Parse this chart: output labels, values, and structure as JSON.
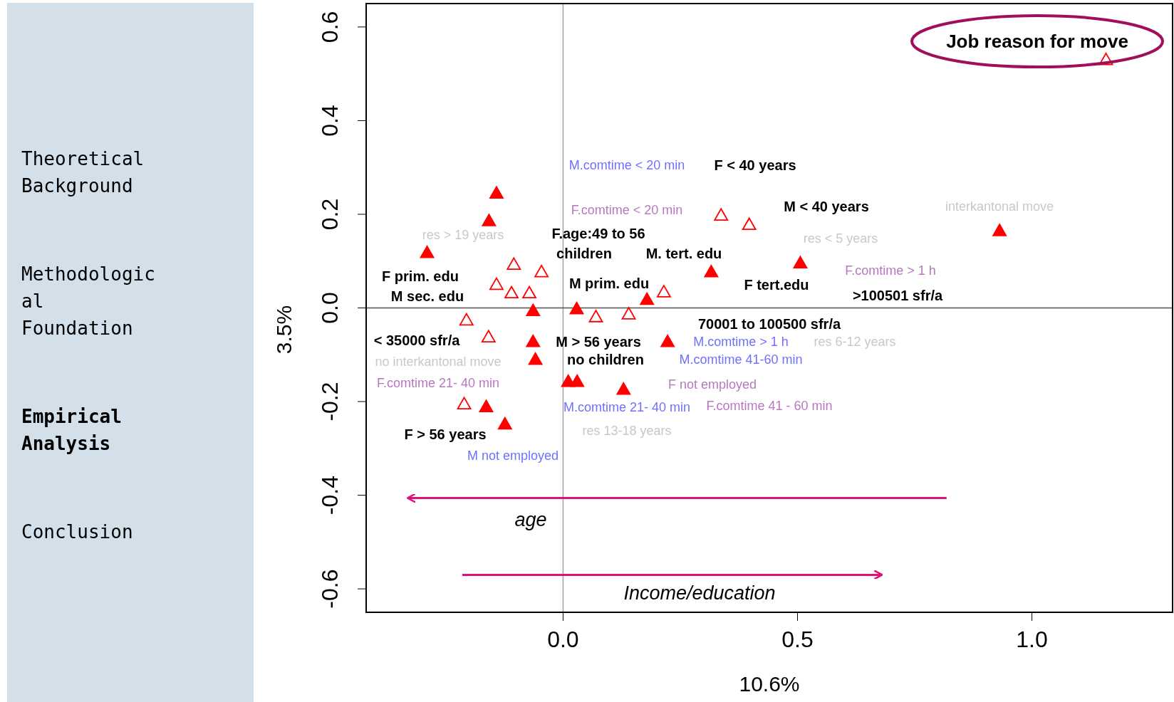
{
  "chart_data": [
    {
      "type": "scatter",
      "xlabel": "10.6%",
      "ylabel": "3.5%",
      "xlim": [
        -0.42,
        1.3
      ],
      "ylim": [
        -0.65,
        0.65
      ],
      "xticks": [
        {
          "value": 0,
          "label": "0.0"
        },
        0.5,
        {
          "value": 1,
          "label": "1.0"
        }
      ],
      "yticks": [
        -0.6,
        -0.4,
        -0.2,
        {
          "value": 0,
          "label": "0.0"
        },
        0.2,
        0.4,
        0.6
      ],
      "grid": false,
      "marker": "triangle",
      "ref_lines": [
        {
          "axis": "x",
          "value": 0,
          "color": "#a0a0a0"
        },
        {
          "axis": "y",
          "value": 0,
          "color": "#505050"
        }
      ],
      "series": [
        {
          "color": "#ff0000",
          "x": [
            -0.142,
            -0.158,
            -0.29,
            0.316,
            0.506,
            0.931,
            -0.064,
            0.029,
            -0.064,
            -0.059,
            0.011,
            0.03,
            0.129,
            0.223,
            -0.164,
            -0.124,
            0.179
          ],
          "values": [
            0.245,
            0.186,
            0.118,
            0.077,
            0.096,
            0.165,
            -0.006,
            -0.002,
            -0.072,
            -0.11,
            -0.157,
            -0.157,
            -0.174,
            -0.072,
            -0.211,
            -0.248,
            0.018
          ]
        },
        {
          "color": "#ff0000",
          "x": [
            0.337,
            0.397,
            1.158,
            -0.105,
            -0.046,
            -0.206,
            -0.159,
            0.07,
            -0.211,
            0.14,
            -0.142,
            -0.11,
            -0.072,
            0.215
          ],
          "values": [
            0.198,
            0.178,
            0.53,
            0.093,
            0.077,
            -0.026,
            -0.062,
            -0.019,
            -0.205,
            -0.013,
            0.05,
            0.032,
            0.032,
            0.034
          ]
        }
      ],
      "annotations": [
        "res > 19 years",
        "no interkantonal move",
        "interkantonal move",
        "res < 5 years",
        "res 6-12 years",
        "res 13-18 years",
        "M.comtime < 20 min",
        "M.comtime 41-60 min",
        "M.comtime > 1 h",
        "M.comtime 21- 40 min",
        "M not employed",
        "F.comtime < 20 min",
        "F.comtime > 1 h",
        "F.comtime 21- 40 min",
        "F not employed",
        "F.comtime 41 - 60 min",
        "F < 40 years",
        "M < 40 years",
        "F.age:49 to 56",
        "children",
        "M. tert. edu",
        "F prim. edu",
        "M prim. edu",
        "F tert.edu",
        "M sec. edu",
        ">100501 sfr/a",
        "< 35000 sfr/a",
        "no children",
        "70001 to 100500 sfr/a",
        "M > 56 years",
        "F > 56 years",
        "Job reason for move",
        "age",
        "Income/education"
      ]
    },
    {
      "type": "other",
      "annotations": [
        "Theoretical Background",
        "Methodological Foundation",
        "Empirical Analysis",
        "Conclusion"
      ]
    }
  ]
}
